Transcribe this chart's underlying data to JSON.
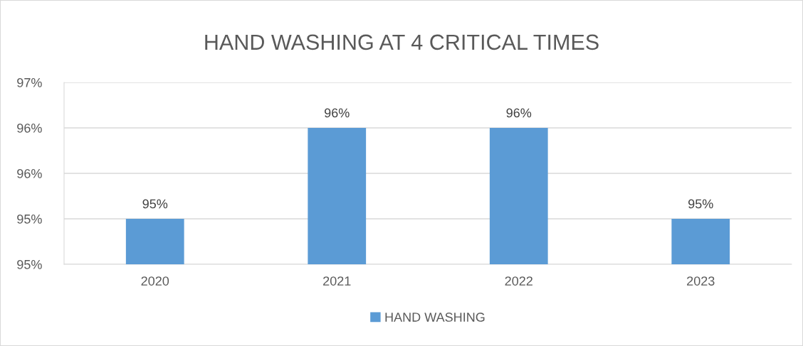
{
  "chart_data": {
    "type": "bar",
    "title": "HAND WASHING AT 4 CRITICAL TIMES",
    "categories": [
      "2020",
      "2021",
      "2022",
      "2023"
    ],
    "series": [
      {
        "name": "HAND WASHING",
        "color": "#5b9bd5",
        "values": [
          95,
          96,
          96,
          95
        ],
        "value_labels": [
          "95%",
          "96%",
          "96%",
          "95%"
        ]
      }
    ],
    "ylim": [
      94.5,
      96.5
    ],
    "yticks": [
      {
        "value": 94.5,
        "label": "95%"
      },
      {
        "value": 95,
        "label": "95%"
      },
      {
        "value": 95.5,
        "label": "96%"
      },
      {
        "value": 96,
        "label": "96%"
      },
      {
        "value": 96.5,
        "label": "97%"
      }
    ],
    "grid": "y",
    "legend": "bottom"
  }
}
